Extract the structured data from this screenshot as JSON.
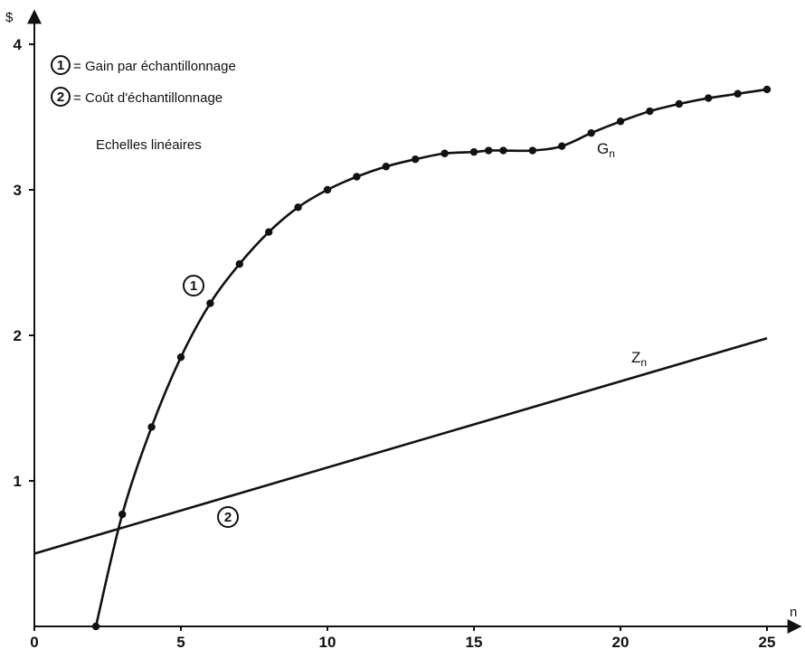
{
  "chart_data": {
    "type": "line",
    "title": "",
    "xlabel": "n",
    "ylabel": "$",
    "xlim": [
      0,
      25
    ],
    "ylim": [
      0,
      4
    ],
    "xticks": [
      0,
      5,
      10,
      15,
      20,
      25
    ],
    "yticks": [
      1,
      2,
      3,
      4
    ],
    "xtick_labels": [
      "0",
      "5",
      "10",
      "15",
      "20",
      "25"
    ],
    "ytick_labels": [
      "1",
      "2",
      "3",
      "4"
    ],
    "scale_note": "Echelles linéaires",
    "legend": [
      {
        "marker": "1",
        "eq": "=",
        "text": "Gain par échantillonnage"
      },
      {
        "marker": "2",
        "eq": "=",
        "text": "Coût d'échantillonnage"
      }
    ],
    "grid": false,
    "series": [
      {
        "name": "Gn",
        "label_main": "G",
        "label_sub": "n",
        "marker_label": "1",
        "markers": true,
        "x": [
          2.1,
          3,
          4,
          5,
          6,
          7,
          8,
          9,
          10,
          11,
          12,
          13,
          14,
          15,
          15.5,
          16,
          17,
          18,
          19,
          20,
          21,
          22,
          23,
          24,
          25
        ],
        "y": [
          0,
          0.77,
          1.37,
          1.85,
          2.22,
          2.49,
          2.71,
          2.88,
          3.0,
          3.09,
          3.16,
          3.21,
          3.25,
          3.26,
          3.27,
          3.27,
          3.27,
          3.3,
          3.39,
          3.47,
          3.54,
          3.59,
          3.63,
          3.66,
          3.69
        ]
      },
      {
        "name": "Zn",
        "label_main": "Z",
        "label_sub": "n",
        "marker_label": "2",
        "markers": false,
        "x": [
          0,
          25
        ],
        "y": [
          0.5,
          1.98
        ]
      }
    ]
  }
}
